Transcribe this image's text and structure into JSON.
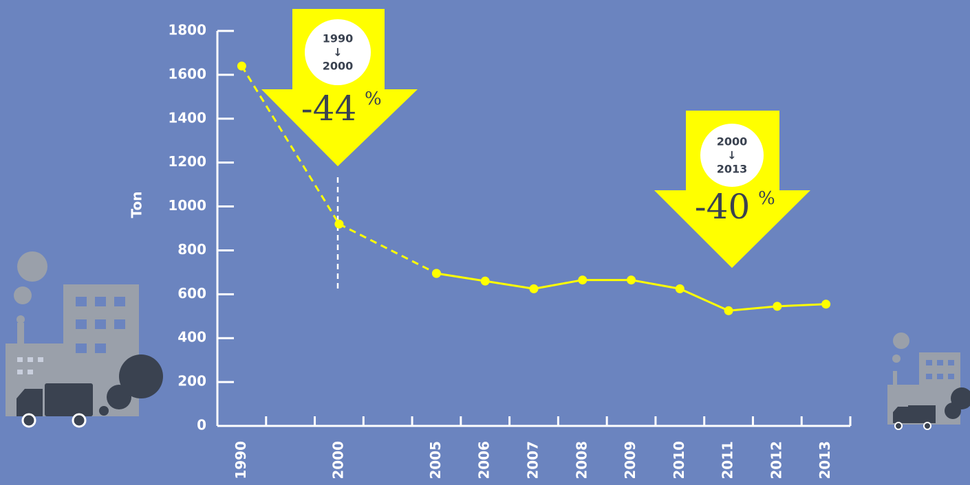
{
  "chart_data": {
    "type": "line",
    "y_label": "Ton",
    "categories": [
      "1990",
      null,
      "2000",
      null,
      "2005",
      "2006",
      "2007",
      "2008",
      "2009",
      "2010",
      "2011",
      "2012",
      "2013"
    ],
    "series": [
      {
        "color": "#ffff00",
        "linestyle": "dashed",
        "values": [
          1640,
          null,
          920,
          null,
          695,
          null,
          null,
          null,
          null,
          null,
          null,
          null,
          null
        ]
      },
      {
        "color": "#ffff00",
        "linestyle": "solid",
        "values": [
          null,
          null,
          null,
          null,
          695,
          660,
          625,
          665,
          665,
          625,
          525,
          545,
          555
        ]
      }
    ],
    "ylim": [
      0,
      1800
    ],
    "yticks": [
      0,
      200,
      400,
      600,
      800,
      1000,
      1200,
      1400,
      1600,
      1800
    ],
    "annotations": [
      {
        "from": "1990",
        "arrow": "↓",
        "to": "2000",
        "change": "-44",
        "unit": "%"
      },
      {
        "from": "2000",
        "arrow": "↓",
        "to": "2013",
        "change": "-40",
        "unit": "%"
      }
    ]
  }
}
